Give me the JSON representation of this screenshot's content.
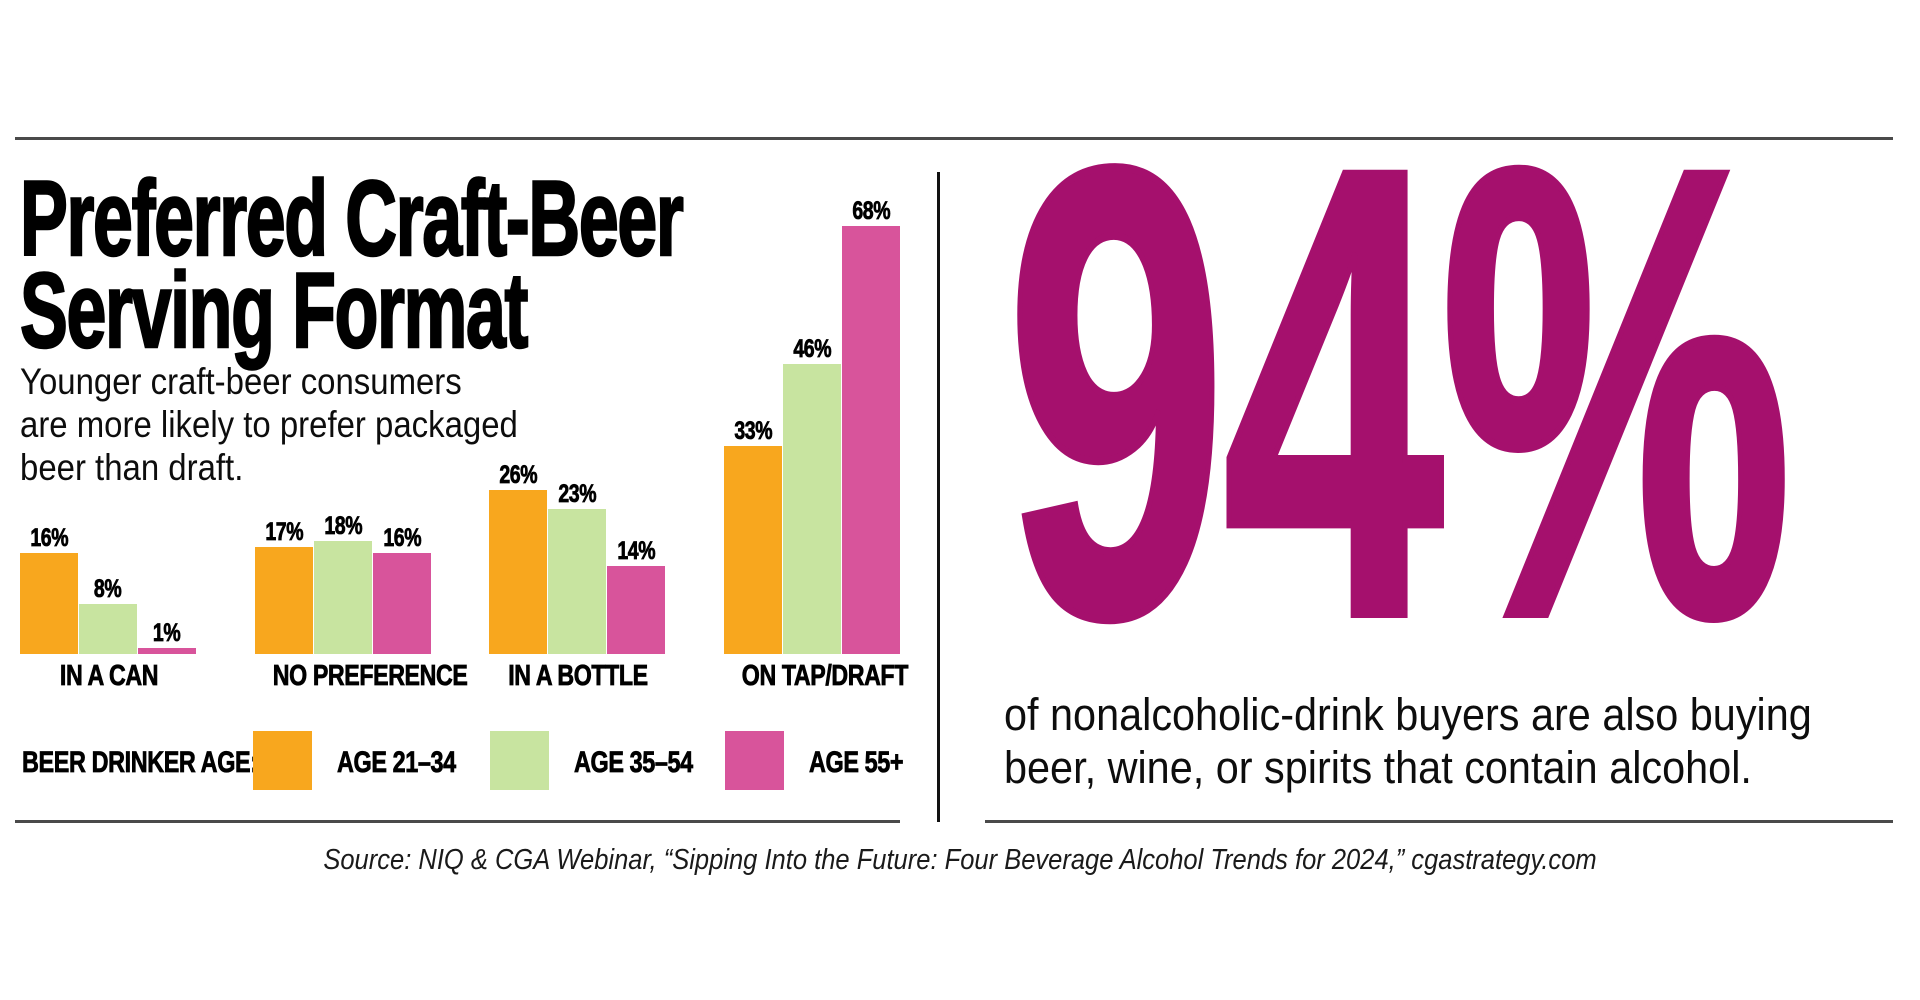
{
  "page": {
    "background": "#ffffff",
    "rule_color": "#4a4a4a",
    "divider_color": "#111111"
  },
  "header": {
    "title_line1": "Preferred Craft-Beer",
    "title_line2": "Serving Format",
    "subtitle_lines": [
      "Younger craft-beer consumers",
      "are more likely to prefer packaged",
      "beer than draft."
    ]
  },
  "chart_data": {
    "type": "bar",
    "title": "Preferred Craft-Beer Serving Format",
    "categories": [
      "IN A CAN",
      "NO PREFERENCE",
      "IN A BOTTLE",
      "ON TAP/DRAFT"
    ],
    "series": [
      {
        "name": "AGE 21–34",
        "color": "#F8A71E",
        "values": [
          16,
          17,
          26,
          33
        ]
      },
      {
        "name": "AGE 35–54",
        "color": "#C8E4A0",
        "values": [
          8,
          18,
          23,
          46
        ]
      },
      {
        "name": "AGE 55+",
        "color": "#D8549B",
        "values": [
          1,
          16,
          14,
          68
        ]
      }
    ],
    "value_suffix": "%",
    "ylim": [
      0,
      70
    ],
    "grid": false,
    "axes_visible": false,
    "legend_title": "BEER DRINKER AGE:",
    "legend_position": "bottom",
    "xlabel": "",
    "ylabel": ""
  },
  "stat": {
    "value": "94%",
    "color": "#A5106D",
    "description_lines": [
      "of nonalcoholic-drink buyers are also buying",
      "beer, wine, or spirits that contain alcohol."
    ]
  },
  "source": {
    "text": "Source: NIQ & CGA Webinar, “Sipping Into the Future: Four Beverage Alcohol Trends for 2024,” cgastrategy.com"
  }
}
